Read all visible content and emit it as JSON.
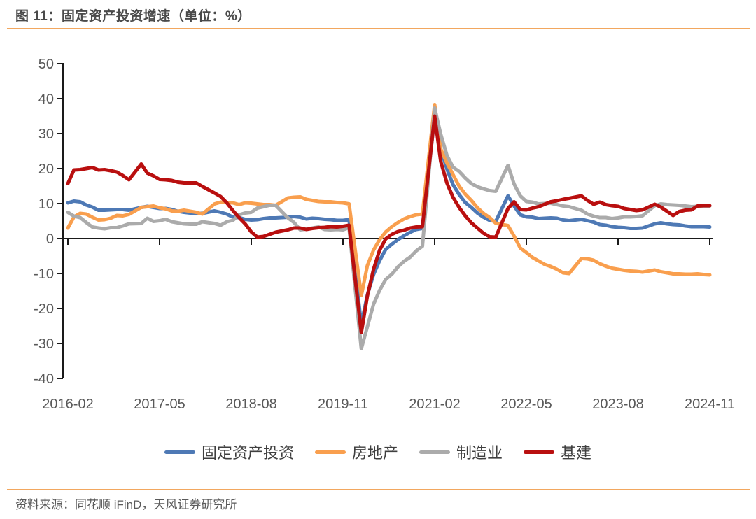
{
  "header": {
    "title": "图 11：固定资产投资增速（单位：%）"
  },
  "footer": {
    "source": "资料来源：同花顺 iFinD，天风证券研究所"
  },
  "colors": {
    "accent_rule": "#f2a75f",
    "axis_text": "#595959",
    "axis_line": "#1a1a1a"
  },
  "chart_data": {
    "type": "line",
    "title": "固定资产投资增速",
    "unit": "%",
    "legend_position": "bottom",
    "grid": false,
    "y": {
      "min": -40,
      "max": 50,
      "step": 10,
      "ticks": [
        50,
        40,
        30,
        20,
        10,
        0,
        -10,
        -20,
        -30,
        -40
      ]
    },
    "x": {
      "start": "2016-02",
      "end": "2024-11",
      "tick_labels": [
        "2016-02",
        "2017-05",
        "2018-08",
        "2019-11",
        "2021-02",
        "2022-05",
        "2023-08",
        "2024-11"
      ],
      "months": [
        "02",
        "03",
        "04",
        "05",
        "06",
        "07",
        "08",
        "09",
        "10",
        "11",
        "12"
      ]
    },
    "series": [
      {
        "key": "fixed-asset-investment",
        "name": "固定资产投资",
        "color": "#4e79b5",
        "values": {
          "2016": [
            10.2,
            10.7,
            10.5,
            9.6,
            9.0,
            8.1,
            8.1,
            8.2,
            8.3,
            8.3,
            8.1
          ],
          "2017": [
            8.9,
            9.2,
            8.9,
            8.6,
            8.6,
            8.3,
            7.8,
            7.5,
            7.3,
            7.2,
            7.2
          ],
          "2018": [
            7.9,
            7.5,
            7.0,
            6.1,
            6.0,
            5.5,
            5.3,
            5.4,
            5.7,
            5.9,
            5.9
          ],
          "2019": [
            6.1,
            6.3,
            6.1,
            5.6,
            5.8,
            5.7,
            5.5,
            5.4,
            5.2,
            5.2,
            5.4
          ],
          "2020": [
            -24.5,
            -16.1,
            -10.3,
            -6.3,
            -3.1,
            -1.6,
            -0.3,
            0.8,
            1.8,
            2.6,
            2.9
          ],
          "2021": [
            35.0,
            25.6,
            19.9,
            15.4,
            12.6,
            10.3,
            8.9,
            7.3,
            6.1,
            5.2,
            4.9
          ],
          "2022": [
            12.2,
            9.3,
            6.8,
            6.2,
            6.1,
            5.7,
            5.8,
            5.9,
            5.8,
            5.3,
            5.1
          ],
          "2023": [
            5.5,
            5.1,
            4.7,
            4.0,
            3.8,
            3.4,
            3.2,
            3.1,
            2.9,
            2.9,
            3.0
          ],
          "2024": [
            4.2,
            4.5,
            4.2,
            4.0,
            3.9,
            3.6,
            3.4,
            3.4,
            3.4,
            3.3
          ]
        }
      },
      {
        "key": "real-estate",
        "name": "房地产",
        "color": "#f99f4e",
        "values": {
          "2016": [
            3.0,
            6.2,
            7.2,
            7.0,
            6.1,
            5.3,
            5.4,
            5.8,
            6.6,
            6.5,
            6.9
          ],
          "2017": [
            8.9,
            9.1,
            9.3,
            8.8,
            8.5,
            7.9,
            7.8,
            8.1,
            7.8,
            7.5,
            7.0
          ],
          "2018": [
            9.9,
            10.4,
            10.3,
            10.2,
            9.7,
            10.2,
            10.1,
            9.9,
            9.7,
            9.7,
            9.5
          ],
          "2019": [
            11.6,
            11.8,
            11.9,
            11.2,
            10.9,
            10.6,
            10.5,
            10.5,
            10.3,
            10.2,
            9.9
          ],
          "2020": [
            -16.3,
            -7.7,
            -3.3,
            -0.3,
            1.9,
            3.4,
            4.6,
            5.6,
            6.3,
            6.8,
            7.0
          ],
          "2021": [
            38.3,
            25.6,
            21.6,
            18.3,
            15.0,
            12.7,
            10.9,
            8.8,
            7.2,
            6.0,
            4.4
          ],
          "2022": [
            3.7,
            0.7,
            -2.7,
            -4.0,
            -5.4,
            -6.4,
            -7.4,
            -8.0,
            -8.8,
            -9.8,
            -10.0
          ],
          "2023": [
            -5.7,
            -5.8,
            -6.2,
            -7.2,
            -7.9,
            -8.5,
            -8.8,
            -9.1,
            -9.3,
            -9.4,
            -9.6
          ],
          "2024": [
            -9.0,
            -9.5,
            -9.8,
            -10.1,
            -10.1,
            -10.2,
            -10.2,
            -10.1,
            -10.3,
            -10.4
          ]
        }
      },
      {
        "key": "manufacturing",
        "name": "制造业",
        "color": "#ababab",
        "values": {
          "2016": [
            7.5,
            6.4,
            6.0,
            4.6,
            3.3,
            3.0,
            2.8,
            3.1,
            3.1,
            3.6,
            4.2
          ],
          "2017": [
            4.3,
            5.8,
            4.9,
            5.1,
            5.5,
            4.8,
            4.5,
            4.2,
            4.1,
            4.1,
            4.8
          ],
          "2018": [
            4.3,
            3.8,
            4.8,
            5.2,
            6.8,
            7.3,
            7.5,
            8.7,
            9.1,
            9.5,
            9.5
          ],
          "2019": [
            5.9,
            4.6,
            2.5,
            2.7,
            3.0,
            3.3,
            2.6,
            2.5,
            2.6,
            2.5,
            3.1
          ],
          "2020": [
            -31.5,
            -25.2,
            -18.8,
            -14.8,
            -11.7,
            -10.2,
            -8.1,
            -6.5,
            -5.3,
            -3.5,
            -2.2
          ],
          "2021": [
            37.3,
            29.8,
            23.8,
            20.4,
            19.2,
            17.3,
            15.7,
            14.8,
            14.2,
            13.7,
            13.5
          ],
          "2022": [
            20.9,
            15.6,
            12.2,
            10.6,
            10.4,
            9.9,
            10.0,
            10.1,
            9.7,
            9.3,
            9.1
          ],
          "2023": [
            8.1,
            7.0,
            6.4,
            6.0,
            6.0,
            5.7,
            5.9,
            6.2,
            6.2,
            6.3,
            6.5
          ],
          "2024": [
            9.4,
            9.9,
            9.7,
            9.6,
            9.5,
            9.3,
            9.1,
            9.2,
            9.3,
            9.3
          ]
        }
      },
      {
        "key": "infrastructure",
        "name": "基建",
        "color": "#b90f0f",
        "values": {
          "2016": [
            15.7,
            19.6,
            19.7,
            20.0,
            20.3,
            19.6,
            19.7,
            19.4,
            19.0,
            18.0,
            16.8
          ],
          "2017": [
            21.3,
            18.7,
            17.9,
            16.9,
            16.8,
            16.6,
            16.1,
            15.9,
            15.9,
            15.9,
            14.9
          ],
          "2018": [
            13.0,
            12.0,
            10.2,
            8.0,
            6.0,
            4.2,
            1.9,
            0.4,
            0.6,
            1.2,
            1.8
          ],
          "2019": [
            2.5,
            3.0,
            3.0,
            2.6,
            2.9,
            3.1,
            3.2,
            3.4,
            3.3,
            3.5,
            3.8
          ],
          "2020": [
            -26.9,
            -16.4,
            -8.8,
            -3.3,
            -0.1,
            1.2,
            2.0,
            2.4,
            3.0,
            3.3,
            3.4
          ],
          "2021": [
            35.0,
            22.0,
            15.9,
            11.8,
            8.9,
            6.5,
            4.5,
            3.0,
            1.5,
            0.5,
            0.4
          ],
          "2022": [
            8.6,
            10.5,
            8.3,
            8.2,
            8.7,
            9.1,
            9.8,
            10.5,
            10.8,
            11.2,
            11.5
          ],
          "2023": [
            12.2,
            10.9,
            9.8,
            10.4,
            9.7,
            9.4,
            9.2,
            8.6,
            8.3,
            8.0,
            8.2
          ],
          "2024": [
            9.8,
            9.0,
            7.8,
            6.6,
            7.7,
            8.1,
            8.2,
            9.3,
            9.4,
            9.4
          ]
        }
      }
    ]
  }
}
